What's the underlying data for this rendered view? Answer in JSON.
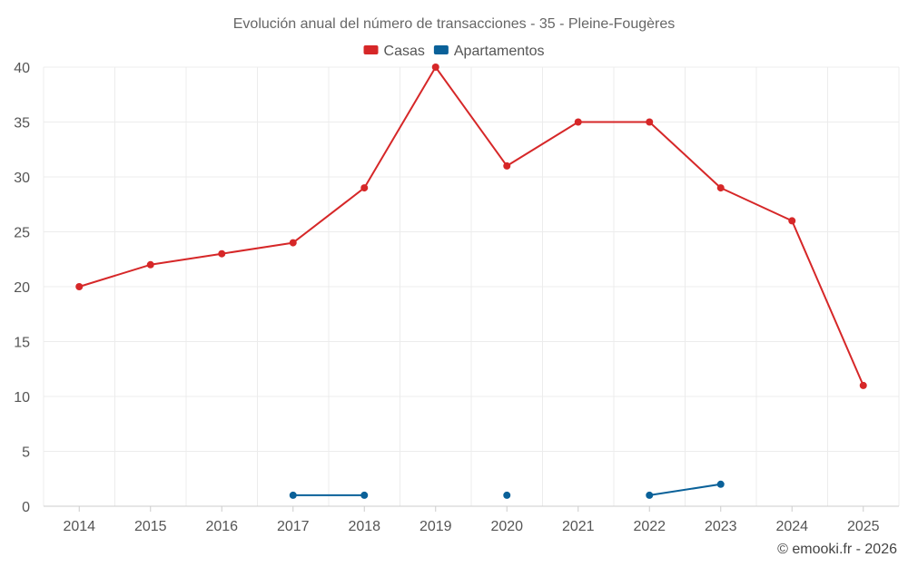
{
  "chart_data": {
    "type": "line",
    "title": "Evolución anual del número de transacciones - 35 - Pleine-Fougères",
    "categories": [
      "2014",
      "2015",
      "2016",
      "2017",
      "2018",
      "2019",
      "2020",
      "2021",
      "2022",
      "2023",
      "2024",
      "2025"
    ],
    "yticks": [
      "0",
      "5",
      "10",
      "15",
      "20",
      "25",
      "30",
      "35",
      "40"
    ],
    "ylim": [
      0,
      40
    ],
    "grid": true,
    "legend_position": "top-center",
    "series": [
      {
        "name": "Casas",
        "color": "#d62728",
        "values": [
          20,
          22,
          23,
          24,
          29,
          40,
          31,
          35,
          35,
          29,
          26,
          11
        ]
      },
      {
        "name": "Apartamentos",
        "color": "#0a6199",
        "values": [
          null,
          null,
          null,
          1,
          1,
          null,
          1,
          null,
          1,
          2,
          null,
          null
        ]
      }
    ],
    "credit": "© emooki.fr - 2026"
  }
}
